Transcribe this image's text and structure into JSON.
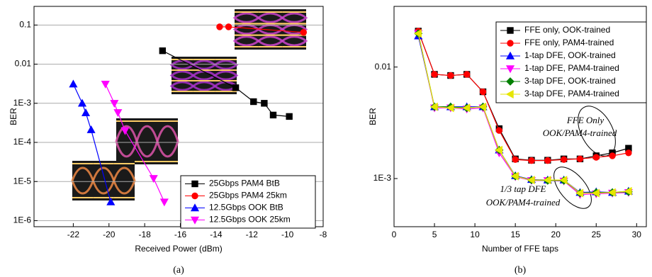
{
  "chart_data": [
    {
      "type": "line",
      "caption": "(a)",
      "xlabel": "Received Power (dBm)",
      "ylabel": "BER",
      "xlim": [
        -24.2,
        -8
      ],
      "xticks": [
        -22,
        -20,
        -18,
        -16,
        -14,
        -12,
        -10,
        -8
      ],
      "ylim": [
        7e-07,
        0.3
      ],
      "ylog": true,
      "grid": true,
      "legend": "lower right",
      "yticks": [
        {
          "value": 1e-06,
          "label": "1E-6"
        },
        {
          "value": 1e-05,
          "label": "1E-5"
        },
        {
          "value": 0.0001,
          "label": "1E-4"
        },
        {
          "value": 0.001,
          "label": "1E-3"
        },
        0.01,
        0.1
      ],
      "series": [
        {
          "name": "25Gbps PAM4 BtB",
          "color": "#000000",
          "marker": "square",
          "x": [
            -17,
            -12.9,
            -11.9,
            -11.3,
            -10.8,
            -9.9
          ],
          "values": [
            0.022,
            0.0025,
            0.0011,
            0.001,
            0.0005,
            0.00046
          ]
        },
        {
          "name": "25Gbps PAM4 25km",
          "color": "#ff0000",
          "marker": "circle",
          "x": [
            -13.8,
            -13.3,
            -9.1
          ],
          "values": [
            0.09,
            0.09,
            0.065
          ]
        },
        {
          "name": "12.5Gbps OOK BtB",
          "color": "#0000ff",
          "marker": "triangle-up",
          "x": [
            -22,
            -21.5,
            -21.3,
            -21,
            -19.9
          ],
          "values": [
            0.0031,
            0.001,
            0.00057,
            0.00021,
            3e-06
          ]
        },
        {
          "name": "12.5Gbps OOK 25km",
          "color": "#ff00ff",
          "marker": "triangle-down",
          "x": [
            -20.2,
            -19.7,
            -19.5,
            -19.1,
            -17.5,
            -16.9
          ],
          "values": [
            0.0031,
            0.001,
            0.00058,
            0.0002,
            1.2e-05,
            3e-06
          ]
        }
      ]
    },
    {
      "type": "line",
      "caption": "(b)",
      "xlabel": "Number of FFE taps",
      "ylabel": "BER",
      "xlim": [
        0,
        31.2
      ],
      "xticks": [
        0,
        5,
        10,
        15,
        20,
        25,
        30
      ],
      "ylim": [
        0.00037,
        0.035
      ],
      "ylog": true,
      "grid": false,
      "legend": "upper right",
      "yticks": [
        {
          "value": 0.001,
          "label": "1E-3"
        },
        0.01
      ],
      "annotations": [
        "FFE Only",
        "OOK/PAM4-trained",
        "1/3 tap DFE",
        "OOK/PAM4-trained"
      ],
      "series": [
        {
          "name": "FFE only, OOK-trained",
          "color": "#000000",
          "marker": "square",
          "x": [
            3,
            5,
            7,
            9,
            11,
            13,
            15,
            17,
            19,
            21,
            23,
            25,
            27,
            29
          ],
          "values": [
            0.021,
            0.0086,
            0.0084,
            0.0086,
            0.006,
            0.0028,
            0.0015,
            0.00146,
            0.00146,
            0.0015,
            0.0015,
            0.0016,
            0.0017,
            0.00187
          ]
        },
        {
          "name": "FFE only, PAM4-trained",
          "color": "#ff0000",
          "marker": "circle",
          "x": [
            3,
            5,
            7,
            9,
            11,
            13,
            15,
            17,
            19,
            21,
            23,
            25,
            27,
            29
          ],
          "values": [
            0.021,
            0.0086,
            0.0084,
            0.0086,
            0.006,
            0.0027,
            0.00148,
            0.00145,
            0.00145,
            0.00148,
            0.0015,
            0.00155,
            0.0016,
            0.0017
          ]
        },
        {
          "name": "1-tap DFE, OOK-trained",
          "color": "#0000ff",
          "marker": "triangle-up",
          "x": [
            3,
            5,
            7,
            9,
            11,
            13,
            15,
            17,
            19,
            21,
            23,
            25,
            27,
            29
          ],
          "values": [
            0.019,
            0.0044,
            0.0044,
            0.0044,
            0.0044,
            0.0018,
            0.00106,
            0.00098,
            0.00097,
            0.00097,
            0.00075,
            0.00076,
            0.00075,
            0.00077
          ]
        },
        {
          "name": "1-tap DFE, PAM4-trained",
          "color": "#ff00ff",
          "marker": "triangle-down",
          "x": [
            3,
            5,
            7,
            9,
            11,
            13,
            15,
            17,
            19,
            21,
            23,
            25,
            27,
            29
          ],
          "values": [
            0.02,
            0.0043,
            0.0043,
            0.0042,
            0.0043,
            0.0017,
            0.00104,
            0.00096,
            0.00096,
            0.00095,
            0.00072,
            0.00073,
            0.00074,
            0.00075
          ]
        },
        {
          "name": "3-tap DFE, OOK-trained",
          "color": "#008000",
          "marker": "diamond",
          "x": [
            3,
            5,
            7,
            9,
            11,
            13,
            15,
            17,
            19,
            21,
            23,
            25,
            27,
            29
          ],
          "values": [
            0.02,
            0.0044,
            0.0044,
            0.0043,
            0.0044,
            0.0018,
            0.00105,
            0.00097,
            0.00096,
            0.00096,
            0.00074,
            0.00075,
            0.00075,
            0.00076
          ]
        },
        {
          "name": "3-tap DFE, PAM4-trained",
          "color": "#e6e600",
          "marker": "triangle-left",
          "x": [
            3,
            5,
            7,
            9,
            11,
            13,
            15,
            17,
            19,
            21,
            23,
            25,
            27,
            29
          ],
          "values": [
            0.02,
            0.0044,
            0.0043,
            0.0043,
            0.0044,
            0.0018,
            0.00105,
            0.00097,
            0.00097,
            0.00097,
            0.00074,
            0.00074,
            0.00075,
            0.00077
          ]
        }
      ]
    }
  ]
}
